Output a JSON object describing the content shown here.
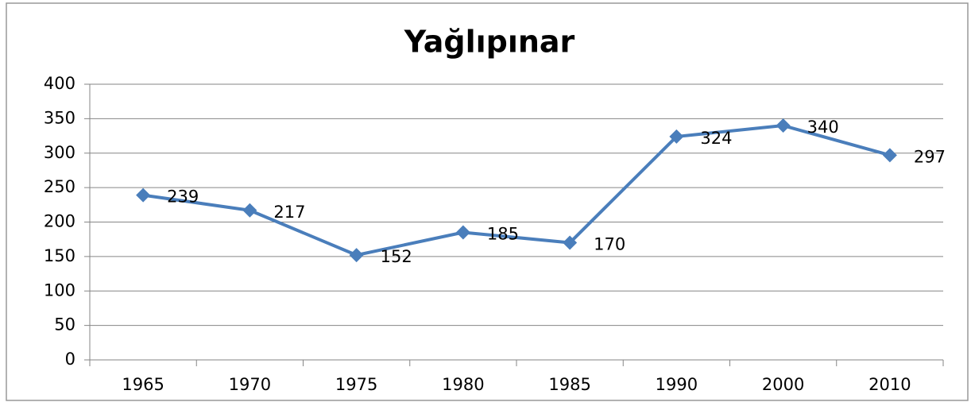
{
  "chart_data": {
    "type": "line",
    "title": "Yağlıpınar",
    "categories": [
      "1965",
      "1970",
      "1975",
      "1980",
      "1985",
      "1990",
      "2000",
      "2010"
    ],
    "values": [
      239,
      217,
      152,
      185,
      170,
      324,
      340,
      297
    ],
    "color": "#4a7ebb",
    "ylim": [
      0,
      400
    ],
    "yticks": [
      0,
      50,
      100,
      150,
      200,
      250,
      300,
      350,
      400
    ],
    "grid": true
  }
}
